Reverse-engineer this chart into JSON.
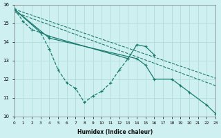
{
  "background_color": "#cff0f0",
  "grid_color": "#aad8d8",
  "line_color": "#1a7a6e",
  "xlabel": "Humidex (Indice chaleur)",
  "ylim": [
    10,
    16
  ],
  "xlim": [
    0,
    23
  ],
  "yticks": [
    10,
    11,
    12,
    13,
    14,
    15,
    16
  ],
  "xticks": [
    0,
    1,
    2,
    3,
    4,
    5,
    6,
    7,
    8,
    9,
    10,
    11,
    12,
    13,
    14,
    15,
    16,
    17,
    18,
    19,
    20,
    21,
    22,
    23
  ],
  "series1_x": [
    0,
    1,
    2,
    3,
    4,
    5,
    6,
    7,
    8,
    9,
    10,
    11,
    12,
    13
  ],
  "series1_y": [
    15.75,
    15.1,
    14.65,
    14.5,
    13.6,
    12.5,
    11.8,
    11.5,
    10.75,
    11.1,
    11.35,
    11.8,
    12.5,
    13.1
  ],
  "series2_x": [
    0,
    3,
    4,
    13,
    14,
    15,
    16
  ],
  "series2_y": [
    15.75,
    14.5,
    14.3,
    13.1,
    13.85,
    13.75,
    13.3
  ],
  "series3_x": [
    0,
    4,
    14,
    15,
    16,
    18,
    19,
    20,
    22,
    23
  ],
  "series3_y": [
    15.75,
    14.2,
    13.1,
    12.75,
    12.0,
    12.0,
    11.65,
    11.3,
    10.6,
    10.15
  ],
  "trend1_x": [
    0,
    23
  ],
  "trend1_y": [
    15.75,
    12.05
  ],
  "trend2_x": [
    0,
    23
  ],
  "trend2_y": [
    15.6,
    11.65
  ]
}
